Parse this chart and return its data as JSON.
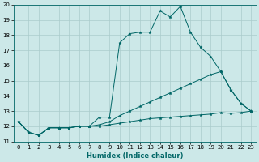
{
  "xlabel": "Humidex (Indice chaleur)",
  "xlim": [
    -0.5,
    23.5
  ],
  "ylim": [
    11,
    20
  ],
  "yticks": [
    11,
    12,
    13,
    14,
    15,
    16,
    17,
    18,
    19,
    20
  ],
  "xticks": [
    0,
    1,
    2,
    3,
    4,
    5,
    6,
    7,
    8,
    9,
    10,
    11,
    12,
    13,
    14,
    15,
    16,
    17,
    18,
    19,
    20,
    21,
    22,
    23
  ],
  "bg_color": "#cce8e8",
  "line_color": "#006666",
  "grid_color": "#aacccc",
  "series": [
    {
      "x": [
        0,
        1,
        2,
        3,
        4,
        5,
        6,
        7,
        8,
        9,
        10,
        11,
        12,
        13,
        14,
        15,
        16,
        17,
        18,
        19,
        20,
        21,
        22,
        23
      ],
      "y": [
        12.3,
        11.6,
        11.4,
        11.9,
        11.9,
        11.9,
        12.0,
        12.0,
        12.6,
        12.6,
        17.5,
        18.1,
        18.2,
        18.2,
        19.6,
        19.2,
        19.9,
        18.2,
        17.2,
        16.6,
        15.6,
        14.4,
        13.5,
        13.0
      ]
    },
    {
      "x": [
        0,
        1,
        2,
        3,
        4,
        5,
        6,
        7,
        8,
        9,
        10,
        11,
        12,
        13,
        14,
        15,
        16,
        17,
        18,
        19,
        20,
        21,
        22,
        23
      ],
      "y": [
        12.3,
        11.6,
        11.4,
        11.9,
        11.9,
        11.9,
        12.0,
        12.0,
        12.1,
        12.3,
        12.7,
        13.0,
        13.3,
        13.6,
        13.9,
        14.2,
        14.5,
        14.8,
        15.1,
        15.4,
        15.6,
        14.4,
        13.5,
        13.0
      ]
    },
    {
      "x": [
        0,
        1,
        2,
        3,
        4,
        5,
        6,
        7,
        8,
        9,
        10,
        11,
        12,
        13,
        14,
        15,
        16,
        17,
        18,
        19,
        20,
        21,
        22,
        23
      ],
      "y": [
        12.3,
        11.6,
        11.4,
        11.9,
        11.9,
        11.9,
        12.0,
        12.0,
        12.0,
        12.1,
        12.2,
        12.3,
        12.4,
        12.5,
        12.55,
        12.6,
        12.65,
        12.7,
        12.75,
        12.8,
        12.9,
        12.85,
        12.9,
        13.0
      ]
    }
  ]
}
